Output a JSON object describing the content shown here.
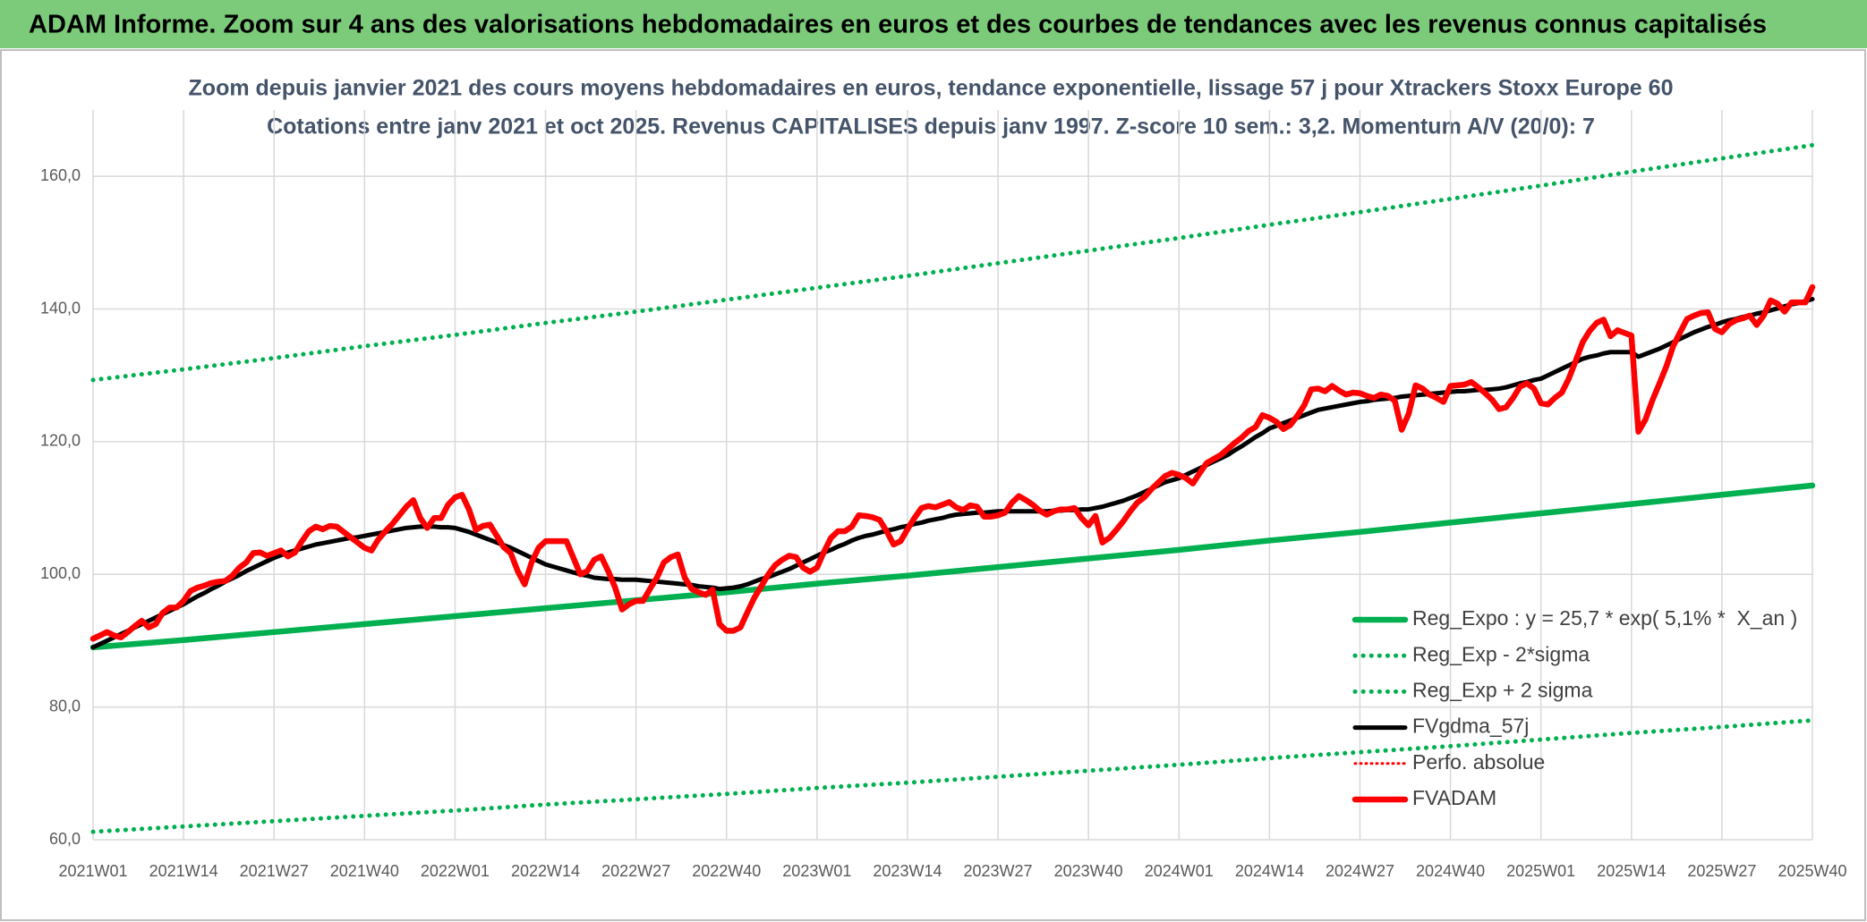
{
  "header": {
    "title": "ADAM Informe. Zoom sur 4 ans des valorisations hebdomadaires en euros et des courbes de tendances avec les revenus connus capitalisés"
  },
  "chart_data": {
    "type": "line",
    "title": "Zoom depuis janvier 2021 des cours moyens hebdomadaires en euros, tendance exponentielle, lissage 57 j pour Xtrackers Stoxx Europe 60",
    "subtitle": "Cotations entre janv 2021 et oct 2025. Revenus CAPITALISES depuis janv 1997. Z-score 10 sem.: 3,2. Momentum A/V (20/0): 7",
    "categories": [
      "2021W01",
      null,
      null,
      null,
      null,
      null,
      null,
      null,
      null,
      null,
      null,
      null,
      null,
      "2021W14",
      null,
      null,
      null,
      null,
      null,
      null,
      null,
      null,
      null,
      null,
      null,
      null,
      "2021W27",
      null,
      null,
      null,
      null,
      null,
      null,
      null,
      null,
      null,
      null,
      null,
      null,
      "2021W40",
      null,
      null,
      null,
      null,
      null,
      null,
      null,
      null,
      null,
      null,
      null,
      null,
      "2022W01",
      null,
      null,
      null,
      null,
      null,
      null,
      null,
      null,
      null,
      null,
      null,
      null,
      "2022W14",
      null,
      null,
      null,
      null,
      null,
      null,
      null,
      null,
      null,
      null,
      null,
      null,
      "2022W27",
      null,
      null,
      null,
      null,
      null,
      null,
      null,
      null,
      null,
      null,
      null,
      null,
      "2022W40",
      null,
      null,
      null,
      null,
      null,
      null,
      null,
      null,
      null,
      null,
      null,
      null,
      "2023W01",
      null,
      null,
      null,
      null,
      null,
      null,
      null,
      null,
      null,
      null,
      null,
      null,
      "2023W14",
      null,
      null,
      null,
      null,
      null,
      null,
      null,
      null,
      null,
      null,
      null,
      null,
      "2023W27",
      null,
      null,
      null,
      null,
      null,
      null,
      null,
      null,
      null,
      null,
      null,
      null,
      "2023W40",
      null,
      null,
      null,
      null,
      null,
      null,
      null,
      null,
      null,
      null,
      null,
      null,
      "2024W01",
      null,
      null,
      null,
      null,
      null,
      null,
      null,
      null,
      null,
      null,
      null,
      null,
      "2024W14",
      null,
      null,
      null,
      null,
      null,
      null,
      null,
      null,
      null,
      null,
      null,
      null,
      "2024W27",
      null,
      null,
      null,
      null,
      null,
      null,
      null,
      null,
      null,
      null,
      null,
      null,
      "2024W40",
      null,
      null,
      null,
      null,
      null,
      null,
      null,
      null,
      null,
      null,
      null,
      null,
      "2025W01",
      null,
      null,
      null,
      null,
      null,
      null,
      null,
      null,
      null,
      null,
      null,
      null,
      "2025W14",
      null,
      null,
      null,
      null,
      null,
      null,
      null,
      null,
      null,
      null,
      null,
      null,
      "2025W27",
      null,
      null,
      null,
      null,
      null,
      null,
      null,
      null,
      null,
      null,
      null,
      null,
      "2025W40"
    ],
    "ylim": [
      60,
      170
    ],
    "yticks": [
      {
        "value": 60,
        "label": "60,0"
      },
      {
        "value": 80,
        "label": "80,0"
      },
      {
        "value": 100,
        "label": "100,0"
      },
      {
        "value": 120,
        "label": "120,0"
      },
      {
        "value": 140,
        "label": "140,0"
      },
      {
        "value": 160,
        "label": "160,0"
      }
    ],
    "grid": true,
    "legend": "right",
    "series": [
      {
        "name": "Reg_Expo : y = 25,7 * exp( 5,1% *  X_an )",
        "color": "#00b050",
        "style": "solid",
        "x": [
          "2021W01",
          "2021W14",
          "2021W27",
          "2021W40",
          "2022W01",
          "2022W14",
          "2022W27",
          "2022W40",
          "2023W01",
          "2023W14",
          "2023W27",
          "2023W40",
          "2024W01",
          "2024W14",
          "2024W27",
          "2024W40",
          "2025W01",
          "2025W14",
          "2025W27",
          "2025W40"
        ],
        "values": [
          89.0,
          90.1,
          91.3,
          92.5,
          93.7,
          94.9,
          96.1,
          97.3,
          98.6,
          99.8,
          101.1,
          102.4,
          103.7,
          105.1,
          106.4,
          107.8,
          109.2,
          110.6,
          112.0,
          113.4
        ]
      },
      {
        "name": "Reg_Exp - 2*sigma",
        "color": "#00b050",
        "style": "dotted",
        "x": [
          "2021W01",
          "2021W14",
          "2021W27",
          "2021W40",
          "2022W01",
          "2022W14",
          "2022W27",
          "2022W40",
          "2023W01",
          "2023W14",
          "2023W27",
          "2023W40",
          "2024W01",
          "2024W14",
          "2024W27",
          "2024W40",
          "2025W01",
          "2025W14",
          "2025W27",
          "2025W40"
        ],
        "values": [
          61.2,
          62.0,
          62.8,
          63.6,
          64.4,
          65.3,
          66.1,
          66.9,
          67.8,
          68.6,
          69.5,
          70.4,
          71.3,
          72.3,
          73.2,
          74.1,
          75.1,
          76.1,
          77.0,
          78.0
        ]
      },
      {
        "name": "Reg_Exp + 2 sigma",
        "color": "#00b050",
        "style": "dotted",
        "x": [
          "2021W01",
          "2021W14",
          "2021W27",
          "2021W40",
          "2022W01",
          "2022W14",
          "2022W27",
          "2022W40",
          "2023W01",
          "2023W14",
          "2023W27",
          "2023W40",
          "2024W01",
          "2024W14",
          "2024W27",
          "2024W40",
          "2025W01",
          "2025W14",
          "2025W27",
          "2025W40"
        ],
        "values": [
          129.3,
          130.9,
          132.6,
          134.4,
          136.1,
          137.9,
          139.6,
          141.4,
          143.2,
          145.0,
          146.9,
          148.8,
          150.7,
          152.7,
          154.6,
          156.6,
          158.6,
          160.7,
          162.7,
          164.7
        ]
      },
      {
        "name": "FVgdma_57j",
        "color": "#000000",
        "style": "solid",
        "values": [
          89.0,
          89.5,
          90.0,
          90.5,
          91.0,
          91.5,
          92.0,
          92.5,
          93.0,
          93.5,
          94.0,
          94.5,
          95.0,
          95.5,
          96.1,
          96.7,
          97.2,
          97.8,
          98.3,
          98.9,
          99.4,
          99.9,
          100.5,
          101.0,
          101.5,
          102.0,
          102.5,
          102.9,
          103.3,
          103.6,
          103.9,
          104.2,
          104.5,
          104.7,
          104.9,
          105.1,
          105.3,
          105.5,
          105.6,
          105.8,
          106.0,
          106.2,
          106.4,
          106.6,
          106.8,
          107.0,
          107.1,
          107.2,
          107.2,
          107.2,
          107.1,
          107.1,
          107.0,
          106.7,
          106.4,
          106.0,
          105.6,
          105.2,
          104.8,
          104.4,
          104.0,
          103.5,
          103.0,
          102.5,
          102.0,
          101.5,
          101.2,
          100.9,
          100.6,
          100.3,
          100.0,
          99.8,
          99.5,
          99.4,
          99.3,
          99.3,
          99.2,
          99.2,
          99.2,
          99.1,
          99.0,
          98.9,
          98.8,
          98.7,
          98.6,
          98.5,
          98.4,
          98.2,
          98.1,
          98.0,
          97.8,
          97.9,
          98.0,
          98.2,
          98.5,
          98.9,
          99.3,
          99.6,
          100.0,
          100.4,
          100.8,
          101.3,
          101.8,
          102.3,
          102.8,
          103.3,
          103.7,
          104.2,
          104.6,
          105.1,
          105.5,
          105.8,
          106.0,
          106.3,
          106.6,
          106.8,
          107.1,
          107.3,
          107.6,
          107.8,
          108.1,
          108.3,
          108.5,
          108.8,
          109.0,
          109.1,
          109.2,
          109.3,
          109.3,
          109.4,
          109.5,
          109.5,
          109.5,
          109.5,
          109.5,
          109.5,
          109.5,
          109.5,
          109.6,
          109.6,
          109.7,
          109.7,
          109.8,
          109.8,
          110.0,
          110.2,
          110.5,
          110.8,
          111.1,
          111.5,
          111.9,
          112.4,
          112.9,
          113.4,
          113.9,
          114.2,
          114.5,
          115.0,
          115.5,
          116.0,
          116.5,
          117.0,
          117.5,
          118.0,
          118.7,
          119.3,
          120.0,
          120.7,
          121.3,
          122.0,
          122.4,
          122.8,
          123.2,
          123.6,
          124.0,
          124.4,
          124.8,
          125.0,
          125.2,
          125.4,
          125.6,
          125.8,
          126.0,
          126.1,
          126.3,
          126.4,
          126.5,
          126.6,
          126.8,
          126.9,
          127.0,
          127.1,
          127.2,
          127.3,
          127.4,
          127.5,
          127.6,
          127.6,
          127.7,
          127.8,
          127.8,
          127.9,
          128.0,
          128.2,
          128.5,
          128.8,
          129.0,
          129.3,
          129.5,
          130.0,
          130.5,
          131.0,
          131.5,
          132.0,
          132.5,
          132.8,
          133.0,
          133.3,
          133.5,
          133.5,
          133.5,
          133.5,
          132.8,
          133.2,
          133.6,
          134.0,
          134.5,
          135.0,
          135.5,
          136.0,
          136.5,
          136.9,
          137.3,
          137.6,
          138.0,
          138.3,
          138.5,
          138.8,
          139.0,
          139.3,
          139.5,
          139.8,
          140.1,
          140.4,
          140.7,
          140.9,
          141.2,
          141.5
        ]
      },
      {
        "name": "Perfo. absolue",
        "color": "#ff0000",
        "style": "dotted"
      },
      {
        "name": "FVADAM",
        "color": "#ff0000",
        "style": "solid",
        "values": [
          90.3,
          90.8,
          91.3,
          90.8,
          90.5,
          91.3,
          92.2,
          93.0,
          92.0,
          92.5,
          94.2,
          95.0,
          95.0,
          96.0,
          97.5,
          98.0,
          98.3,
          98.7,
          98.9,
          99.0,
          99.8,
          101.0,
          101.8,
          103.2,
          103.3,
          102.8,
          103.2,
          103.6,
          102.7,
          103.3,
          105.0,
          106.5,
          107.2,
          106.8,
          107.3,
          107.2,
          106.4,
          105.6,
          104.8,
          104.0,
          103.6,
          105.3,
          106.5,
          107.6,
          108.9,
          110.2,
          111.2,
          108.5,
          107.0,
          108.5,
          108.5,
          110.5,
          111.6,
          112.0,
          109.8,
          106.7,
          107.3,
          107.5,
          105.8,
          104.1,
          103.2,
          100.5,
          98.5,
          101.8,
          104.0,
          105.0,
          105.0,
          105.0,
          105.0,
          102.5,
          100.0,
          100.5,
          102.2,
          102.7,
          100.5,
          98.0,
          94.7,
          95.5,
          96.0,
          96.0,
          97.8,
          99.5,
          101.8,
          102.6,
          103.0,
          99.5,
          97.8,
          97.3,
          96.9,
          97.7,
          92.5,
          91.5,
          91.5,
          92.0,
          94.3,
          96.5,
          98.2,
          100.0,
          101.4,
          102.2,
          102.8,
          102.6,
          101.0,
          100.4,
          101.0,
          103.4,
          105.5,
          106.5,
          106.5,
          107.2,
          108.9,
          108.8,
          108.6,
          108.2,
          106.5,
          104.5,
          105.0,
          106.8,
          108.5,
          110.0,
          110.3,
          110.1,
          110.5,
          110.9,
          110.1,
          109.7,
          110.4,
          110.2,
          108.7,
          108.7,
          108.9,
          109.3,
          110.8,
          111.8,
          111.2,
          110.5,
          109.6,
          109.0,
          109.5,
          109.8,
          109.8,
          110.0,
          108.5,
          107.4,
          108.8,
          104.8,
          105.5,
          106.7,
          108.0,
          109.5,
          110.8,
          111.6,
          112.8,
          113.8,
          114.8,
          115.3,
          115.0,
          114.5,
          113.7,
          115.3,
          116.8,
          117.4,
          118.0,
          118.9,
          119.8,
          120.6,
          121.6,
          122.2,
          124.0,
          123.6,
          123.0,
          121.9,
          122.5,
          123.9,
          125.5,
          127.9,
          128.0,
          127.6,
          128.4,
          127.7,
          127.1,
          127.4,
          127.3,
          126.9,
          126.6,
          127.1,
          126.9,
          126.2,
          121.8,
          124.2,
          128.5,
          128.0,
          127.1,
          126.6,
          126.0,
          128.4,
          128.5,
          128.6,
          129.0,
          128.2,
          127.3,
          126.3,
          124.9,
          125.2,
          126.6,
          128.3,
          128.8,
          128.0,
          125.8,
          125.6,
          126.6,
          127.4,
          129.5,
          132.2,
          135.0,
          136.7,
          137.9,
          138.4,
          135.9,
          136.8,
          136.4,
          136.0,
          121.5,
          123.3,
          126.2,
          128.7,
          131.3,
          134.4,
          136.5,
          138.5,
          139.0,
          139.4,
          139.5,
          137.0,
          136.5,
          137.7,
          138.3,
          138.6,
          139.0,
          137.6,
          139.0,
          141.3,
          140.8,
          139.6,
          141.0,
          141.0,
          141.0,
          143.3
        ]
      }
    ]
  }
}
